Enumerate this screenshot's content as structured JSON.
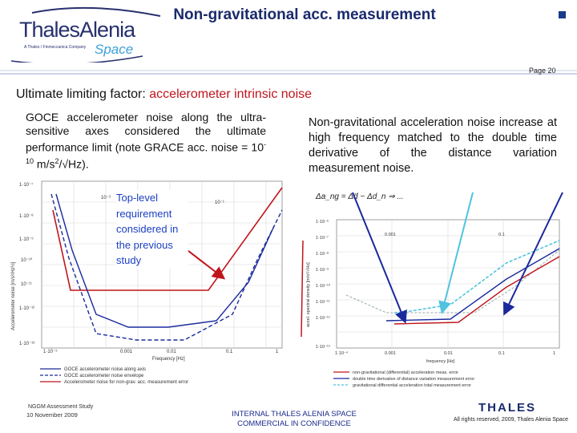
{
  "header": {
    "logo_brand": "ThalesAlenia",
    "logo_tagline": "A Thales / Finmeccanica Company",
    "logo_space": "Space",
    "title": "Non-gravitational acc. measurement",
    "page_label": "Page 20"
  },
  "heading": {
    "prefix": "Ultimate limiting factor: ",
    "accent": "accelerometer intrinsic noise"
  },
  "left_text": {
    "main": "GOCE accelerometer noise along the ultra-sensitive axes considered the ultimate performance limit (note GRACE acc. noise = 10",
    "exponent": "-10",
    "unit": " m/s",
    "unit_exp": "2",
    "unit_tail": "/√Hz)."
  },
  "right_text": "Non-gravitational acceleration noise increase at high frequency matched to the double time derivative of the distance variation measurement noise.",
  "callout": "Top-level requirement considered in the previous study",
  "left_chart": {
    "ylabel": "Accelerometer noise [m/s²/Hz½]",
    "xlabel": "Frequency [Hz]",
    "y_ticks": [
      "1·10⁻⁷",
      "1·10⁻⁸",
      "1·10⁻⁹",
      "10⁻¹⁰",
      "10⁻¹¹",
      "1·10⁻¹²",
      "1·10⁻¹³"
    ],
    "x_ticks": [
      "1·10⁻⁵",
      "0.001",
      "0.01",
      "0.1",
      "1"
    ],
    "inner_label": "10⁻¹",
    "inner_label_left": "10⁻³",
    "legend": [
      "GOCE accelerometer noise along axis",
      "GOCE accelerometer noise envelope",
      "Accelerometer noise for non-grav. acc. measurement error"
    ]
  },
  "right_chart": {
    "ylabel": "accel. spectral density [m/s²/√Hz]",
    "xlabel": "frequency [Hz]",
    "y_ticks": [
      "1·10⁻⁶",
      "1·10⁻⁷",
      "1·10⁻⁸",
      "1·10⁻⁹",
      "1·10⁻¹⁰",
      "1·10⁻¹¹",
      "1·10⁻¹²",
      "1·10⁻¹³"
    ],
    "x_ticks": [
      "1·10⁻⁴",
      "0.001",
      "0.01",
      "0.1",
      "1"
    ],
    "inner_label_1": "0.001",
    "inner_label_2": "0.1",
    "legend": [
      "non-gravitational (differential) acceleration meas. error",
      "double time derivative of distance variation measurement error",
      "gravitational differential acceleration total measurement error"
    ],
    "formula": "Δa_ng = Δd̈ − Δd_n ⇒ ..."
  },
  "footer": {
    "project": "NGGM Assessment Study",
    "date": "10 November 2009",
    "classification_line1": "INTERNAL THALES ALENIA SPACE",
    "classification_line2": "COMMERCIAL IN CONFIDENCE",
    "thales": "THALES",
    "rights": "All rights reserved, 2009, Thales Alenia Space"
  },
  "colors": {
    "title": "#1a2a6c",
    "accent": "#c0141c",
    "callout": "#1a3fc4",
    "goce_noise": "#1a2a9c",
    "envelope": "#1a2a9c",
    "requirement": "#c0141c",
    "cyan_series": "#4fc3e0"
  }
}
